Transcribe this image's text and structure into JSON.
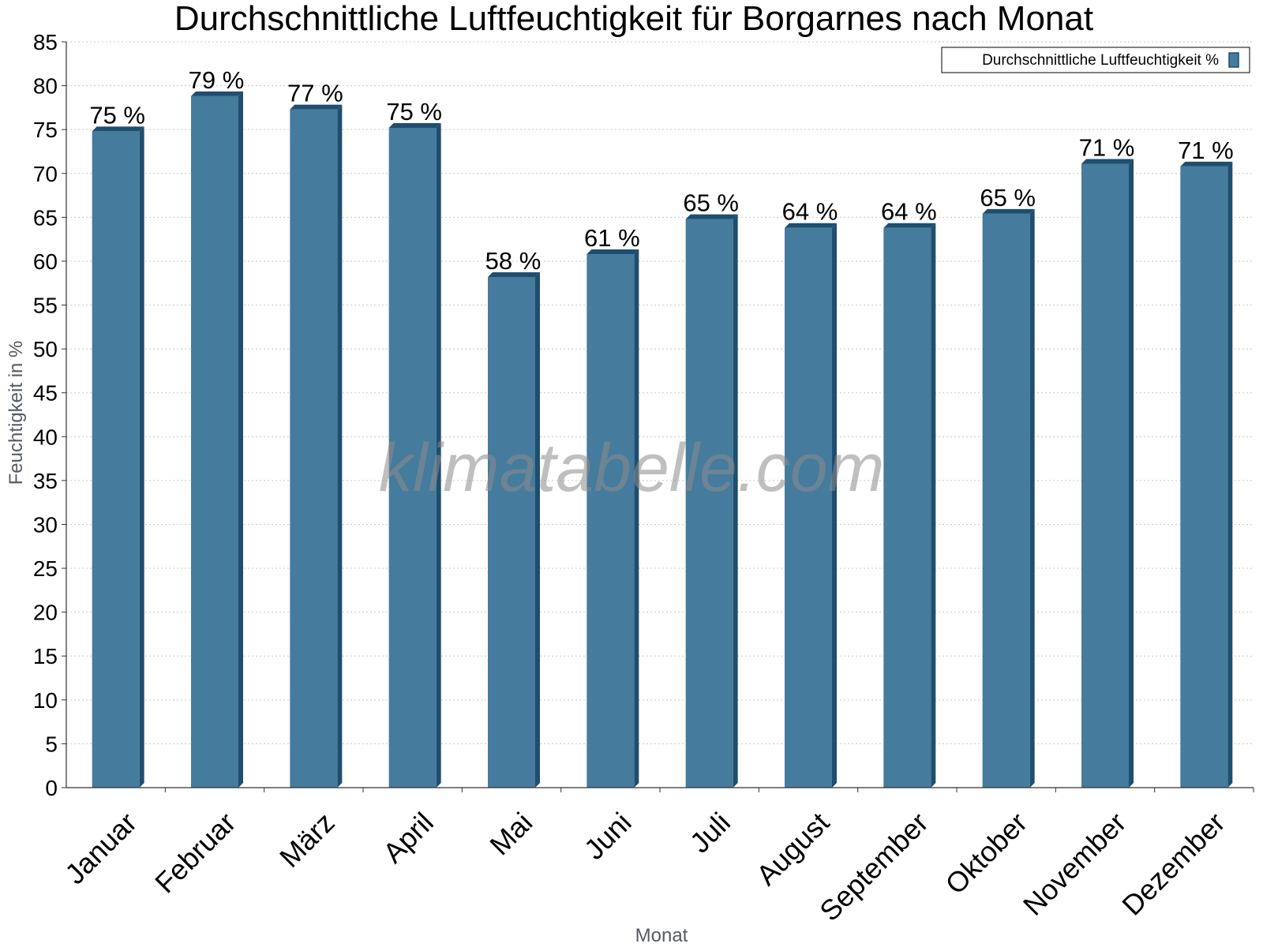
{
  "chart_data": {
    "type": "bar",
    "title": "Durchschnittliche Luftfeuchtigkeit für Borgarnes nach Monat",
    "xlabel": "Monat",
    "ylabel": "Feuchtigkeit in %",
    "ylim": [
      0,
      85
    ],
    "ytick_step": 5,
    "grid": true,
    "legend_position": "top-right",
    "categories": [
      "Januar",
      "Februar",
      "März",
      "April",
      "Mai",
      "Juni",
      "Juli",
      "August",
      "September",
      "Oktober",
      "November",
      "Dezember"
    ],
    "series": [
      {
        "name": "Durchschnittliche Luftfeuchtigkeit %",
        "values": [
          74.8,
          78.8,
          77.3,
          75.2,
          58.2,
          60.8,
          64.8,
          63.8,
          63.8,
          65.4,
          71.1,
          70.8
        ],
        "labels": [
          "75 %",
          "79 %",
          "77 %",
          "75 %",
          "58 %",
          "61 %",
          "65 %",
          "64 %",
          "64 %",
          "65 %",
          "71 %",
          "71 %"
        ],
        "color": "#457b9d",
        "shade_color": "#1f4e6e"
      }
    ],
    "watermark": "klimatabelle.com"
  }
}
